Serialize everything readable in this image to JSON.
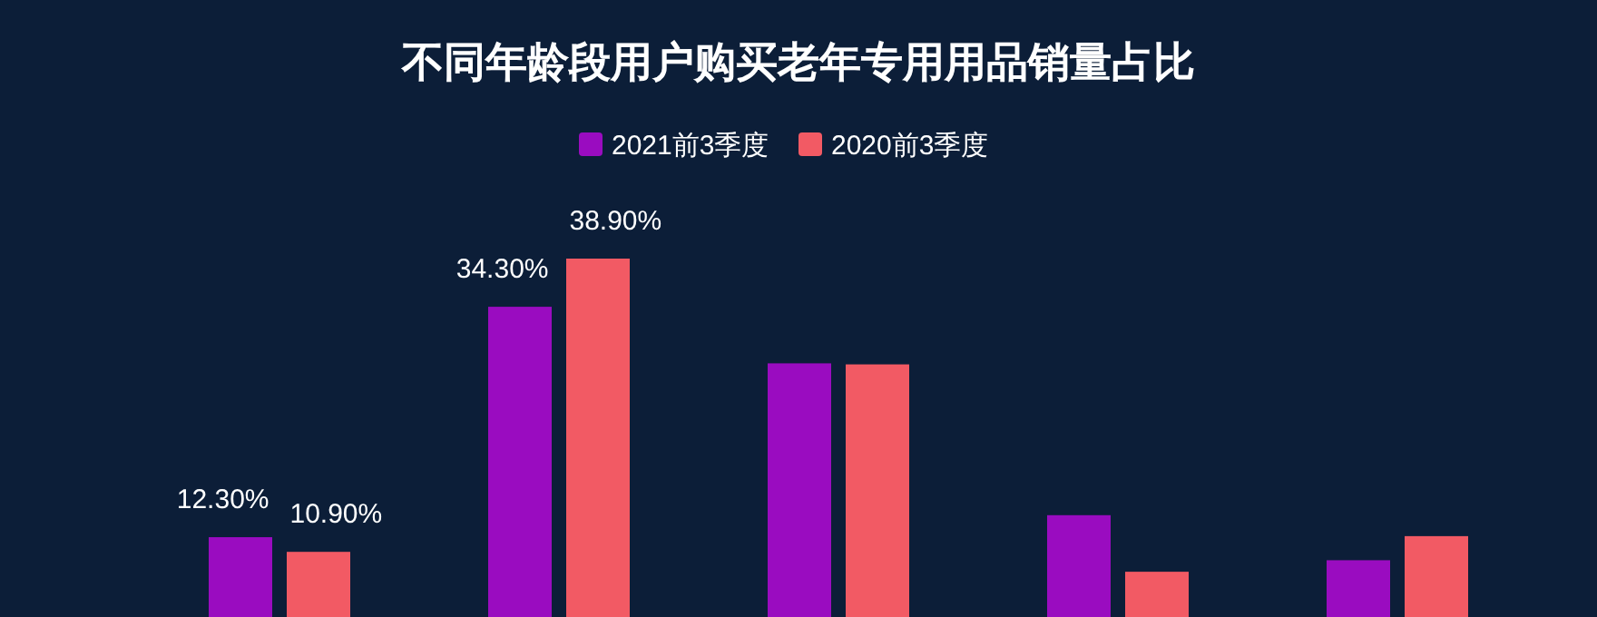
{
  "chart_data": {
    "type": "bar",
    "title": "不同年龄段用户购买老年专用用品销量占比",
    "categories": [
      null,
      null,
      null,
      null,
      null
    ],
    "legend": "top",
    "grid": false,
    "series": [
      {
        "name": "2021前3季度",
        "color": "#9a0cc0",
        "values": [
          12.3,
          34.3,
          28.9,
          14.4,
          10.1
        ],
        "value_labels": [
          "12.30%",
          "34.30%",
          null,
          null,
          null
        ]
      },
      {
        "name": "2020前3季度",
        "color": "#f25a64",
        "values": [
          10.9,
          38.9,
          28.8,
          9.0,
          12.4
        ],
        "value_labels": [
          "10.90%",
          "38.90%",
          null,
          null,
          null
        ]
      }
    ]
  }
}
